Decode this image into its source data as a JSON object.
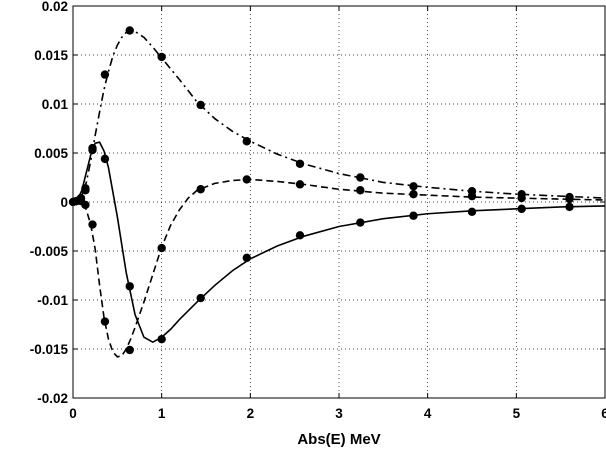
{
  "chart_data": {
    "type": "line",
    "title": "",
    "xlabel": "Abs(E) MeV",
    "ylabel": "",
    "xlim": [
      0,
      6
    ],
    "ylim": [
      -0.02,
      0.02
    ],
    "grid": true,
    "x_ticks": [
      0,
      1,
      2,
      3,
      4,
      5,
      6
    ],
    "x_tick_labels": [
      "0",
      "1",
      "2",
      "3",
      "4",
      "5",
      "6"
    ],
    "y_ticks": [
      -0.02,
      -0.015,
      -0.01,
      -0.005,
      0,
      0.005,
      0.01,
      0.015,
      0.02
    ],
    "y_tick_labels": [
      "-0.02",
      "-0.015",
      "-0.01",
      "-0.005",
      "0",
      "0.005",
      "0.01",
      "0.015",
      "0.02"
    ],
    "series": [
      {
        "style": "solid",
        "curve": {
          "x": [
            0,
            0.05,
            0.1,
            0.15,
            0.2,
            0.25,
            0.3,
            0.35,
            0.4,
            0.5,
            0.6,
            0.7,
            0.8,
            0.9,
            1.0,
            1.1,
            1.2,
            1.4,
            1.6,
            1.8,
            2.0,
            2.3,
            2.6,
            3.0,
            3.5,
            4.0,
            4.5,
            5.0,
            5.5,
            6.0
          ],
          "y": [
            0,
            0.0002,
            0.0012,
            0.003,
            0.0048,
            0.006,
            0.0061,
            0.0052,
            0.0035,
            -0.0015,
            -0.0072,
            -0.0115,
            -0.0138,
            -0.0143,
            -0.0138,
            -0.013,
            -0.012,
            -0.0102,
            -0.0085,
            -0.007,
            -0.0058,
            -0.0045,
            -0.0035,
            -0.0025,
            -0.0017,
            -0.0012,
            -0.0009,
            -0.0007,
            -0.0005,
            -0.0004
          ]
        },
        "points": {
          "x": [
            0.0,
            0.04,
            0.09,
            0.14,
            0.22,
            0.36,
            0.64,
            1.0,
            1.44,
            1.96,
            2.56,
            3.24,
            3.84,
            4.5,
            5.06,
            5.6
          ],
          "y": [
            0.0,
            0.0001,
            0.0004,
            0.0014,
            0.0053,
            0.0044,
            -0.0086,
            -0.014,
            -0.0098,
            -0.0057,
            -0.0034,
            -0.0021,
            -0.0014,
            -0.001,
            -0.0007,
            -0.0005
          ]
        }
      },
      {
        "style": "dashed",
        "curve": {
          "x": [
            0,
            0.05,
            0.1,
            0.15,
            0.2,
            0.25,
            0.3,
            0.35,
            0.4,
            0.45,
            0.5,
            0.55,
            0.6,
            0.65,
            0.7,
            0.8,
            0.9,
            1.0,
            1.1,
            1.2,
            1.3,
            1.4,
            1.6,
            1.8,
            2.0,
            2.3,
            2.6,
            3.0,
            3.5,
            4.0,
            4.5,
            5.0,
            5.5,
            6.0
          ],
          "y": [
            0,
            0.0001,
            0.0,
            -0.0008,
            -0.0023,
            -0.0048,
            -0.0085,
            -0.0118,
            -0.014,
            -0.0153,
            -0.0158,
            -0.0157,
            -0.015,
            -0.014,
            -0.0128,
            -0.0102,
            -0.0074,
            -0.0046,
            -0.0024,
            -0.0008,
            0.0004,
            0.0012,
            0.0019,
            0.0022,
            0.0023,
            0.0021,
            0.0018,
            0.0013,
            0.0009,
            0.0007,
            0.0005,
            0.0004,
            0.0003,
            0.0002
          ]
        },
        "points": {
          "x": [
            0.04,
            0.09,
            0.14,
            0.22,
            0.36,
            0.64,
            1.0,
            1.44,
            1.96,
            2.56,
            3.24,
            3.84,
            4.5,
            5.06,
            5.6
          ],
          "y": [
            0.0001,
            0.0001,
            -0.0003,
            -0.0023,
            -0.0122,
            -0.0151,
            -0.0047,
            0.0013,
            0.0023,
            0.0018,
            0.0012,
            0.0008,
            0.0006,
            0.0004,
            0.0003
          ]
        }
      },
      {
        "style": "dash-dot",
        "curve": {
          "x": [
            0,
            0.05,
            0.1,
            0.15,
            0.2,
            0.25,
            0.3,
            0.35,
            0.4,
            0.45,
            0.5,
            0.55,
            0.6,
            0.65,
            0.7,
            0.8,
            0.9,
            1.0,
            1.2,
            1.4,
            1.6,
            1.8,
            2.0,
            2.3,
            2.6,
            3.0,
            3.5,
            4.0,
            4.5,
            5.0,
            5.5,
            6.0
          ],
          "y": [
            0,
            0.0002,
            0.0007,
            0.002,
            0.0042,
            0.0068,
            0.0092,
            0.0115,
            0.0133,
            0.0149,
            0.016,
            0.0168,
            0.0173,
            0.0175,
            0.0174,
            0.0168,
            0.0158,
            0.0147,
            0.0125,
            0.0102,
            0.0085,
            0.0072,
            0.0062,
            0.0049,
            0.0039,
            0.0029,
            0.002,
            0.0015,
            0.0011,
            0.0008,
            0.0006,
            0.0004
          ]
        },
        "points": {
          "x": [
            0.04,
            0.09,
            0.14,
            0.22,
            0.36,
            0.64,
            1.0,
            1.44,
            1.96,
            2.56,
            3.24,
            3.84,
            4.5,
            5.06,
            5.6
          ],
          "y": [
            0.0001,
            0.0003,
            0.0012,
            0.0055,
            0.013,
            0.0175,
            0.0148,
            0.0099,
            0.0062,
            0.0039,
            0.0025,
            0.0016,
            0.0011,
            0.0008,
            0.0005
          ]
        }
      }
    ]
  }
}
